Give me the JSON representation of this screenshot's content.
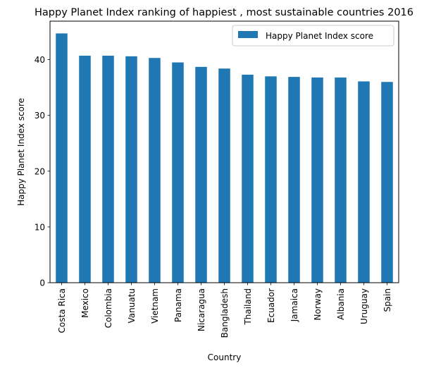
{
  "chart_data": {
    "type": "bar",
    "title": "Happy Planet Index ranking of happiest , most sustainable countries 2016",
    "xlabel": "Country",
    "ylabel": "Happy Planet Index score",
    "categories": [
      "Costa Rica",
      "Mexico",
      "Colombia",
      "Vanuatu",
      "Vietnam",
      "Panama",
      "Nicaragua",
      "Bangladesh",
      "Thailand",
      "Ecuador",
      "Jamaica",
      "Norway",
      "Albania",
      "Uruguay",
      "Spain"
    ],
    "series": [
      {
        "name": "Happy Planet Index score",
        "color": "#1f77b4",
        "values": [
          44.7,
          40.7,
          40.7,
          40.6,
          40.3,
          39.5,
          38.7,
          38.4,
          37.3,
          37.0,
          36.9,
          36.8,
          36.8,
          36.1,
          36.0
        ]
      }
    ],
    "ylim": [
      0,
      46.9
    ],
    "yticks": [
      0,
      10,
      20,
      30,
      40
    ],
    "grid": false,
    "legend": "top-right"
  }
}
